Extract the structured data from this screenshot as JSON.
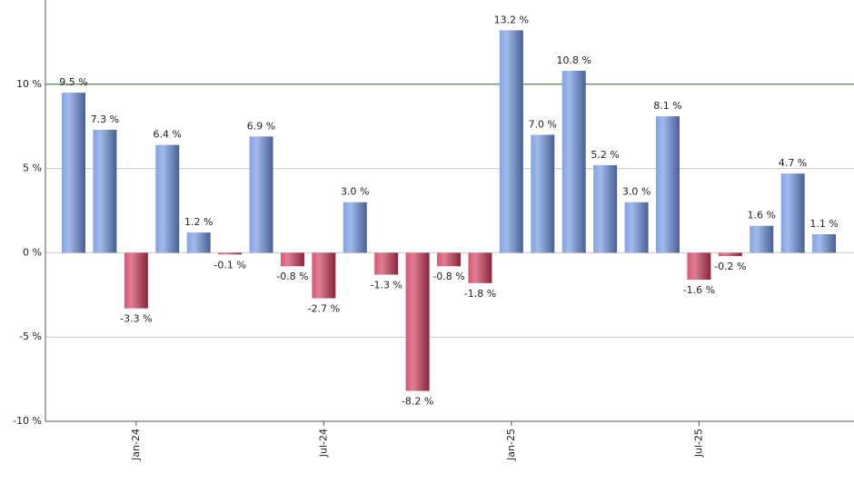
{
  "chart_data": {
    "type": "bar",
    "categories": [
      null,
      null,
      "Jan-24",
      null,
      null,
      null,
      null,
      null,
      "Jul-24",
      null,
      null,
      null,
      null,
      null,
      "Jan-25",
      null,
      null,
      null,
      null,
      null,
      "Jul-25",
      null,
      null,
      null,
      null
    ],
    "values": [
      9.5,
      7.3,
      -3.3,
      6.4,
      1.2,
      -0.1,
      6.9,
      -0.8,
      -2.7,
      3.0,
      -1.3,
      -8.2,
      -0.8,
      -1.8,
      13.2,
      7.0,
      10.8,
      5.2,
      3.0,
      8.1,
      -1.6,
      -0.2,
      1.6,
      4.7,
      1.1
    ],
    "value_labels": [
      "9.5 %",
      "7.3 %",
      "-3.3 %",
      "6.4 %",
      "1.2 %",
      "-0.1 %",
      "6.9 %",
      "-0.8 %",
      "-2.7 %",
      "3.0 %",
      "-1.3 %",
      "-8.2 %",
      "-0.8 %",
      "-1.8 %",
      "13.2 %",
      "7.0 %",
      "10.8 %",
      "5.2 %",
      "3.0 %",
      "8.1 %",
      "-1.6 %",
      "-0.2 %",
      "1.6 %",
      "4.7 %",
      "1.1 %"
    ],
    "colors": {
      "positive": "#6f93e0",
      "negative": "#d0395a"
    },
    "ylim": [
      -10,
      15
    ],
    "yticks": [
      {
        "value": -10,
        "label": "-10 %"
      },
      {
        "value": -5,
        "label": "-5 %"
      },
      {
        "value": 0,
        "label": "0 %"
      },
      {
        "value": 5,
        "label": "5 %"
      },
      {
        "value": 10,
        "label": "10 %"
      }
    ],
    "grid": true,
    "reference_line": {
      "value": 10,
      "color": "#2e7d32"
    }
  }
}
